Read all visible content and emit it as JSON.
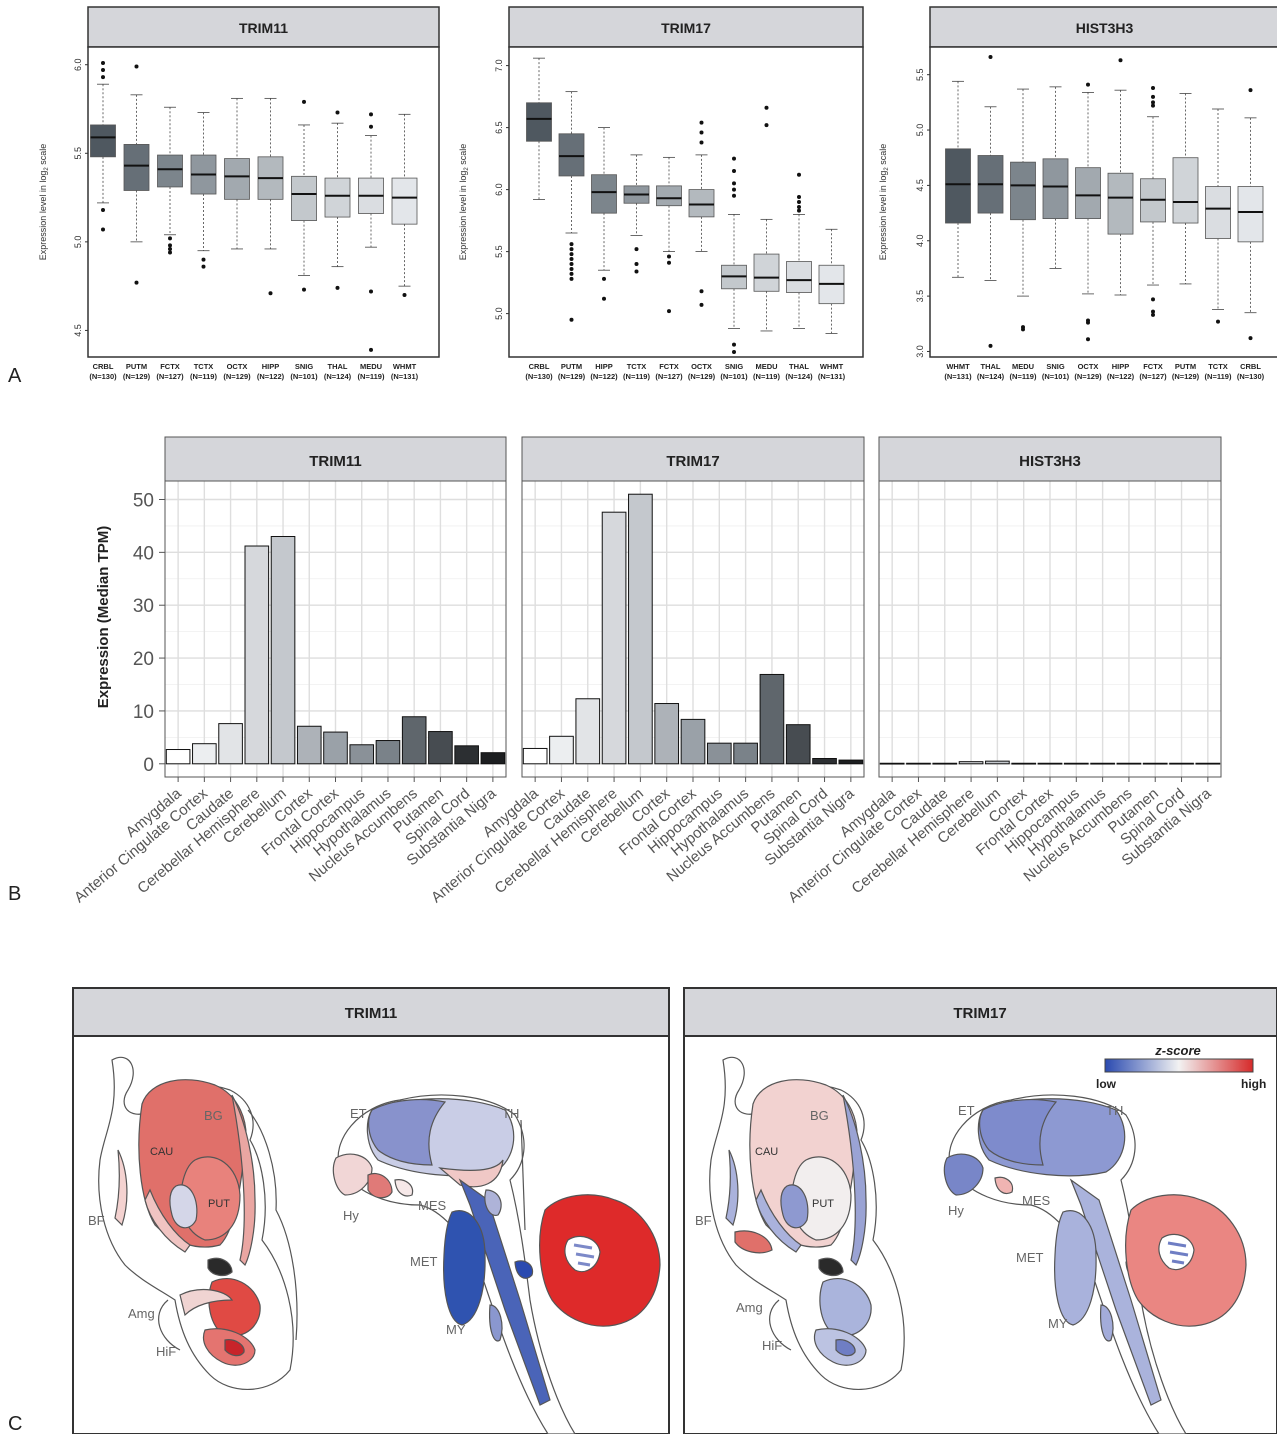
{
  "panels": {
    "a": "A",
    "b": "B",
    "c": "C"
  },
  "chart_data": [
    {
      "type": "boxplot",
      "panel": "A",
      "title": "TRIM11",
      "ylabel": "Expression level in log2 scale",
      "ylim": [
        4.35,
        6.1
      ],
      "yticks": [
        4.5,
        5.0,
        5.5,
        6.0
      ],
      "categories": [
        "CRBL",
        "PUTM",
        "FCTX",
        "TCTX",
        "OCTX",
        "HIPP",
        "SNIG",
        "THAL",
        "MEDU",
        "WHMT"
      ],
      "counts": [
        "(N=130)",
        "(N=129)",
        "(N=127)",
        "(N=119)",
        "(N=129)",
        "(N=122)",
        "(N=101)",
        "(N=124)",
        "(N=119)",
        "(N=131)"
      ],
      "boxes": [
        {
          "lw": 5.22,
          "q1": 5.48,
          "med": 5.59,
          "q3": 5.66,
          "uw": 5.89,
          "out": [
            5.07,
            5.18,
            5.93,
            5.97,
            6.01
          ]
        },
        {
          "lw": 5.0,
          "q1": 5.29,
          "med": 5.43,
          "q3": 5.55,
          "uw": 5.83,
          "out": [
            4.77,
            5.99
          ]
        },
        {
          "lw": 5.04,
          "q1": 5.31,
          "med": 5.41,
          "q3": 5.49,
          "uw": 5.76,
          "out": [
            4.94,
            4.96,
            4.98,
            5.02
          ]
        },
        {
          "lw": 4.95,
          "q1": 5.27,
          "med": 5.38,
          "q3": 5.49,
          "uw": 5.73,
          "out": [
            4.86,
            4.9
          ]
        },
        {
          "lw": 4.96,
          "q1": 5.24,
          "med": 5.37,
          "q3": 5.47,
          "uw": 5.81,
          "out": []
        },
        {
          "lw": 4.96,
          "q1": 5.24,
          "med": 5.36,
          "q3": 5.48,
          "uw": 5.81,
          "out": [
            4.71
          ]
        },
        {
          "lw": 4.81,
          "q1": 5.12,
          "med": 5.27,
          "q3": 5.37,
          "uw": 5.66,
          "out": [
            4.73,
            5.79
          ]
        },
        {
          "lw": 4.86,
          "q1": 5.14,
          "med": 5.26,
          "q3": 5.36,
          "uw": 5.67,
          "out": [
            4.74,
            5.73
          ]
        },
        {
          "lw": 4.97,
          "q1": 5.16,
          "med": 5.26,
          "q3": 5.36,
          "uw": 5.6,
          "out": [
            4.39,
            4.72,
            5.65,
            5.72
          ]
        },
        {
          "lw": 4.75,
          "q1": 5.1,
          "med": 5.25,
          "q3": 5.36,
          "uw": 5.72,
          "out": [
            4.7
          ]
        }
      ]
    },
    {
      "type": "boxplot",
      "panel": "A",
      "title": "TRIM17",
      "ylabel": "Expression level in log2 scale",
      "ylim": [
        4.65,
        7.15
      ],
      "yticks": [
        5.0,
        5.5,
        6.0,
        6.5,
        7.0
      ],
      "categories": [
        "CRBL",
        "PUTM",
        "HIPP",
        "TCTX",
        "FCTX",
        "OCTX",
        "SNIG",
        "MEDU",
        "THAL",
        "WHMT"
      ],
      "counts": [
        "(N=130)",
        "(N=129)",
        "(N=122)",
        "(N=119)",
        "(N=127)",
        "(N=129)",
        "(N=101)",
        "(N=119)",
        "(N=124)",
        "(N=131)"
      ],
      "boxes": [
        {
          "lw": 5.92,
          "q1": 6.39,
          "med": 6.57,
          "q3": 6.7,
          "uw": 7.06,
          "out": []
        },
        {
          "lw": 5.65,
          "q1": 6.11,
          "med": 6.27,
          "q3": 6.45,
          "uw": 6.79,
          "out": [
            4.95,
            5.28,
            5.32,
            5.36,
            5.4,
            5.44,
            5.48,
            5.52,
            5.56
          ]
        },
        {
          "lw": 5.35,
          "q1": 5.81,
          "med": 5.98,
          "q3": 6.12,
          "uw": 6.5,
          "out": [
            5.12,
            5.28
          ]
        },
        {
          "lw": 5.63,
          "q1": 5.89,
          "med": 5.96,
          "q3": 6.03,
          "uw": 6.28,
          "out": [
            5.34,
            5.4,
            5.52
          ]
        },
        {
          "lw": 5.5,
          "q1": 5.87,
          "med": 5.93,
          "q3": 6.03,
          "uw": 6.26,
          "out": [
            5.02,
            5.41,
            5.46
          ]
        },
        {
          "lw": 5.5,
          "q1": 5.78,
          "med": 5.88,
          "q3": 6.0,
          "uw": 6.28,
          "out": [
            5.07,
            5.18,
            6.38,
            6.46,
            6.54
          ]
        },
        {
          "lw": 4.88,
          "q1": 5.2,
          "med": 5.3,
          "q3": 5.39,
          "uw": 5.8,
          "out": [
            4.69,
            4.75,
            5.95,
            6.0,
            6.05,
            6.15,
            6.25
          ]
        },
        {
          "lw": 4.86,
          "q1": 5.18,
          "med": 5.29,
          "q3": 5.48,
          "uw": 5.76,
          "out": [
            6.52,
            6.66
          ]
        },
        {
          "lw": 4.88,
          "q1": 5.17,
          "med": 5.27,
          "q3": 5.42,
          "uw": 5.8,
          "out": [
            5.83,
            5.86,
            5.9,
            5.94,
            6.12
          ]
        },
        {
          "lw": 4.84,
          "q1": 5.08,
          "med": 5.24,
          "q3": 5.39,
          "uw": 5.68,
          "out": []
        }
      ]
    },
    {
      "type": "boxplot",
      "panel": "A",
      "title": "HIST3H3",
      "ylabel": "Expression level in log2 scale",
      "ylim": [
        2.95,
        5.75
      ],
      "yticks": [
        3.0,
        3.5,
        4.0,
        4.5,
        5.0,
        5.5
      ],
      "categories": [
        "WHMT",
        "THAL",
        "MEDU",
        "SNIG",
        "OCTX",
        "HIPP",
        "FCTX",
        "PUTM",
        "TCTX",
        "CRBL"
      ],
      "counts": [
        "(N=131)",
        "(N=124)",
        "(N=119)",
        "(N=101)",
        "(N=129)",
        "(N=122)",
        "(N=127)",
        "(N=129)",
        "(N=119)",
        "(N=130)"
      ],
      "boxes": [
        {
          "lw": 3.67,
          "q1": 4.16,
          "med": 4.51,
          "q3": 4.83,
          "uw": 5.44,
          "out": []
        },
        {
          "lw": 3.64,
          "q1": 4.25,
          "med": 4.51,
          "q3": 4.77,
          "uw": 5.21,
          "out": [
            3.05,
            5.66
          ]
        },
        {
          "lw": 3.5,
          "q1": 4.19,
          "med": 4.5,
          "q3": 4.71,
          "uw": 5.37,
          "out": [
            3.2,
            3.22
          ]
        },
        {
          "lw": 3.75,
          "q1": 4.2,
          "med": 4.49,
          "q3": 4.74,
          "uw": 5.39,
          "out": []
        },
        {
          "lw": 3.52,
          "q1": 4.2,
          "med": 4.41,
          "q3": 4.66,
          "uw": 5.34,
          "out": [
            3.11,
            3.26,
            3.28,
            5.41
          ]
        },
        {
          "lw": 3.51,
          "q1": 4.06,
          "med": 4.39,
          "q3": 4.61,
          "uw": 5.36,
          "out": [
            5.63
          ]
        },
        {
          "lw": 3.6,
          "q1": 4.17,
          "med": 4.37,
          "q3": 4.56,
          "uw": 5.12,
          "out": [
            3.33,
            3.36,
            3.47,
            5.22,
            5.25,
            5.3,
            5.38
          ]
        },
        {
          "lw": 3.61,
          "q1": 4.16,
          "med": 4.35,
          "q3": 4.75,
          "uw": 5.33,
          "out": []
        },
        {
          "lw": 3.38,
          "q1": 4.02,
          "med": 4.29,
          "q3": 4.49,
          "uw": 5.19,
          "out": [
            3.27
          ]
        },
        {
          "lw": 3.35,
          "q1": 3.99,
          "med": 4.26,
          "q3": 4.49,
          "uw": 5.11,
          "out": [
            3.12,
            5.36
          ]
        }
      ]
    },
    {
      "type": "bar",
      "panel": "B",
      "title": "TRIM11",
      "ylabel": "Expression (Median TPM)",
      "ylim": [
        -2.5,
        53.5
      ],
      "yticks": [
        0,
        10,
        20,
        30,
        40,
        50
      ],
      "categories": [
        "Amygdala",
        "Anterior Cingulate Cortex",
        "Caudate",
        "Cerebellar Hemisphere",
        "Cerebellum",
        "Cortex",
        "Frontal Cortex",
        "Hippocampus",
        "Hypothalamus",
        "Nucleus Accumbens",
        "Putamen",
        "Spinal Cord",
        "Substantia Nigra"
      ],
      "values": [
        2.7,
        3.8,
        7.6,
        41.2,
        43.0,
        7.1,
        6.0,
        3.6,
        4.4,
        8.9,
        6.1,
        3.4,
        2.1
      ]
    },
    {
      "type": "bar",
      "panel": "B",
      "title": "TRIM17",
      "ylabel": "Expression (Median TPM)",
      "ylim": [
        -2.5,
        53.5
      ],
      "yticks": [
        0,
        10,
        20,
        30,
        40,
        50
      ],
      "categories": [
        "Amygdala",
        "Anterior Cingulate Cortex",
        "Caudate",
        "Cerebellar Hemisphere",
        "Cerebellum",
        "Cortex",
        "Frontal Cortex",
        "Hippocampus",
        "Hypothalamus",
        "Nucleus Accumbens",
        "Putamen",
        "Spinal Cord",
        "Substantia Nigra"
      ],
      "values": [
        2.9,
        5.2,
        12.3,
        47.6,
        51.0,
        11.4,
        8.4,
        3.9,
        3.9,
        16.9,
        7.4,
        1.0,
        0.7
      ]
    },
    {
      "type": "bar",
      "panel": "B",
      "title": "HIST3H3",
      "ylabel": "Expression (Median TPM)",
      "ylim": [
        -2.5,
        53.5
      ],
      "yticks": [
        0,
        10,
        20,
        30,
        40,
        50
      ],
      "categories": [
        "Amygdala",
        "Anterior Cingulate Cortex",
        "Caudate",
        "Cerebellar Hemisphere",
        "Cerebellum",
        "Cortex",
        "Frontal Cortex",
        "Hippocampus",
        "Hypothalamus",
        "Nucleus Accumbens",
        "Putamen",
        "Spinal Cord",
        "Substantia Nigra"
      ],
      "values": [
        0.1,
        0.1,
        0.1,
        0.4,
        0.5,
        0.1,
        0.1,
        0.1,
        0.1,
        0.1,
        0.1,
        0.1,
        0.1
      ]
    }
  ],
  "brain_panels": [
    {
      "title": "TRIM11",
      "labels": [
        "BG",
        "CAU",
        "PUT",
        "BF",
        "Amg",
        "HiF",
        "ET",
        "TH",
        "Hy",
        "MES",
        "MET",
        "MY"
      ]
    },
    {
      "title": "TRIM17",
      "labels": [
        "BG",
        "CAU",
        "PUT",
        "BF",
        "Amg",
        "HiF",
        "ET",
        "TH",
        "Hy",
        "MES",
        "MET",
        "MY"
      ]
    }
  ],
  "legend": {
    "title": "z-score",
    "low": "low",
    "high": "high",
    "low_color": "#2a4ab0",
    "mid_color": "#f2f2f2",
    "high_color": "#d62a2a"
  },
  "styles": {
    "strip": "#d5d6da",
    "box_dark": "#4f5860",
    "box_light": "#e3e6ea",
    "bar_dark": "#1c1e20",
    "grid": "#e6e6e6"
  }
}
